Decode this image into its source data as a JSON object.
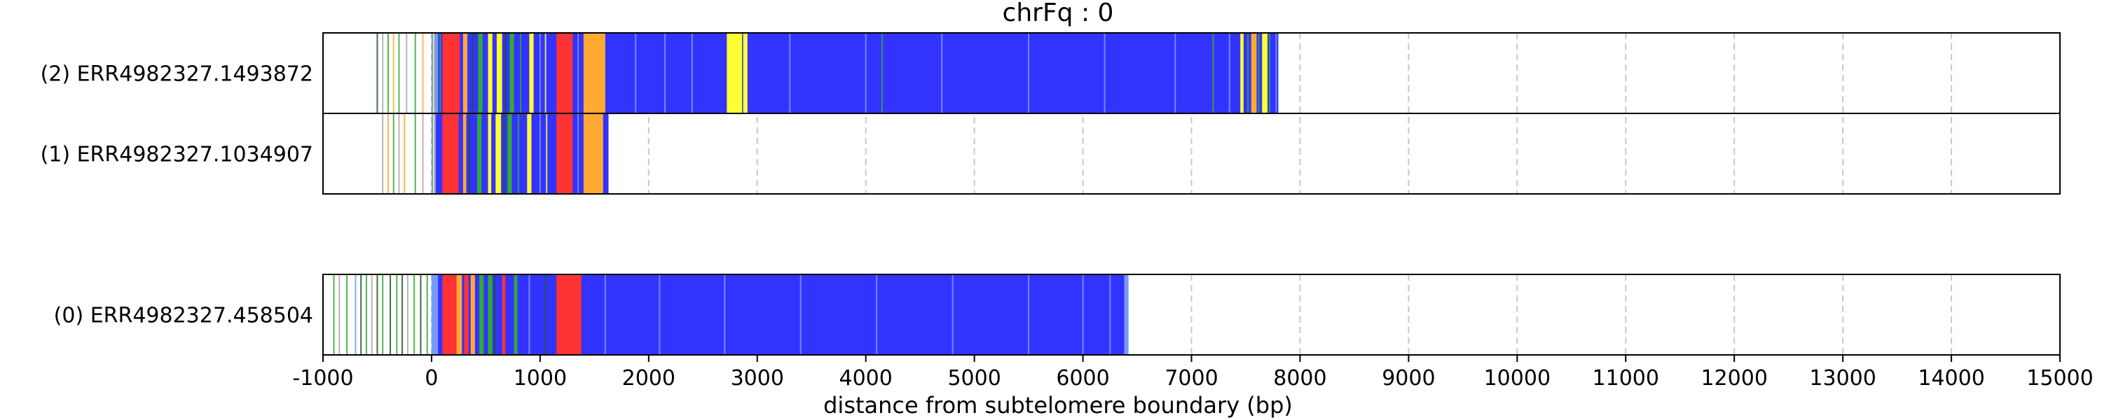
{
  "chart_data": {
    "type": "track",
    "title": "chrFq : 0",
    "xlabel": "distance from subtelomere boundary (bp)",
    "xlim": [
      -1000,
      15000
    ],
    "xticks": [
      -1000,
      0,
      1000,
      2000,
      3000,
      4000,
      5000,
      6000,
      7000,
      8000,
      9000,
      10000,
      11000,
      12000,
      13000,
      14000,
      15000
    ],
    "grid": "vertical-dashed",
    "colors": {
      "blue": "#3333ff",
      "red": "#ff3333",
      "orange": "#ffaa33",
      "yellow": "#ffff33",
      "green": "#33aa33",
      "lightblue": "#7799ff",
      "darkgreen": "#225522",
      "gray": "#aaaaaa"
    },
    "reads": [
      {
        "label": "(2) ERR4982327.1493872",
        "group": 0,
        "end": 7800,
        "segments": [
          {
            "start": 0,
            "end": 7800,
            "color": "blue"
          },
          {
            "start": 0,
            "end": 60,
            "color": "lightblue"
          },
          {
            "start": 100,
            "end": 260,
            "color": "red"
          },
          {
            "start": 290,
            "end": 330,
            "color": "orange"
          },
          {
            "start": 430,
            "end": 470,
            "color": "green"
          },
          {
            "start": 520,
            "end": 560,
            "color": "yellow"
          },
          {
            "start": 600,
            "end": 650,
            "color": "yellow"
          },
          {
            "start": 720,
            "end": 760,
            "color": "green"
          },
          {
            "start": 900,
            "end": 940,
            "color": "yellow"
          },
          {
            "start": 1150,
            "end": 1300,
            "color": "red"
          },
          {
            "start": 1400,
            "end": 1600,
            "color": "orange"
          },
          {
            "start": 2720,
            "end": 2860,
            "color": "yellow"
          },
          {
            "start": 2870,
            "end": 2910,
            "color": "yellow"
          },
          {
            "start": 7450,
            "end": 7480,
            "color": "yellow"
          },
          {
            "start": 7550,
            "end": 7600,
            "color": "orange"
          },
          {
            "start": 7650,
            "end": 7700,
            "color": "yellow"
          }
        ],
        "ticks": [
          {
            "x": -500,
            "color": "darkgreen"
          },
          {
            "x": -450,
            "color": "gray"
          },
          {
            "x": -400,
            "color": "green"
          },
          {
            "x": -350,
            "color": "orange"
          },
          {
            "x": -300,
            "color": "green"
          },
          {
            "x": -230,
            "color": "gray"
          },
          {
            "x": -150,
            "color": "green"
          },
          {
            "x": -80,
            "color": "orange"
          },
          {
            "x": 20,
            "color": "yellow"
          },
          {
            "x": 80,
            "color": "green"
          },
          {
            "x": 380,
            "color": "darkgreen"
          },
          {
            "x": 680,
            "color": "darkgreen"
          },
          {
            "x": 820,
            "color": "green"
          },
          {
            "x": 1000,
            "color": "lightblue"
          },
          {
            "x": 1050,
            "color": "yellow"
          },
          {
            "x": 1350,
            "color": "lightblue"
          },
          {
            "x": 1880,
            "color": "lightblue"
          },
          {
            "x": 2150,
            "color": "lightblue"
          },
          {
            "x": 2400,
            "color": "lightblue"
          },
          {
            "x": 3300,
            "color": "lightblue"
          },
          {
            "x": 4000,
            "color": "lightblue"
          },
          {
            "x": 4150,
            "color": "green"
          },
          {
            "x": 4700,
            "color": "lightblue"
          },
          {
            "x": 5500,
            "color": "lightblue"
          },
          {
            "x": 6200,
            "color": "lightblue"
          },
          {
            "x": 6850,
            "color": "lightblue"
          },
          {
            "x": 7200,
            "color": "green"
          },
          {
            "x": 7350,
            "color": "lightblue"
          },
          {
            "x": 7520,
            "color": "green"
          },
          {
            "x": 7620,
            "color": "green"
          },
          {
            "x": 7720,
            "color": "green"
          },
          {
            "x": 7780,
            "color": "lightblue"
          }
        ]
      },
      {
        "label": "(1) ERR4982327.1034907",
        "group": 0,
        "end": 1630,
        "segments": [
          {
            "start": 0,
            "end": 1630,
            "color": "blue"
          },
          {
            "start": 0,
            "end": 40,
            "color": "lightblue"
          },
          {
            "start": 100,
            "end": 250,
            "color": "red"
          },
          {
            "start": 290,
            "end": 320,
            "color": "orange"
          },
          {
            "start": 420,
            "end": 460,
            "color": "green"
          },
          {
            "start": 520,
            "end": 550,
            "color": "yellow"
          },
          {
            "start": 590,
            "end": 640,
            "color": "yellow"
          },
          {
            "start": 700,
            "end": 740,
            "color": "green"
          },
          {
            "start": 880,
            "end": 920,
            "color": "yellow"
          },
          {
            "start": 1150,
            "end": 1300,
            "color": "red"
          },
          {
            "start": 1400,
            "end": 1580,
            "color": "orange"
          }
        ],
        "ticks": [
          {
            "x": -450,
            "color": "gray"
          },
          {
            "x": -400,
            "color": "orange"
          },
          {
            "x": -350,
            "color": "green"
          },
          {
            "x": -300,
            "color": "gray"
          },
          {
            "x": -250,
            "color": "orange"
          },
          {
            "x": -150,
            "color": "green"
          },
          {
            "x": -80,
            "color": "gray"
          },
          {
            "x": 20,
            "color": "yellow"
          },
          {
            "x": 350,
            "color": "darkgreen"
          },
          {
            "x": 670,
            "color": "darkgreen"
          },
          {
            "x": 800,
            "color": "green"
          },
          {
            "x": 1000,
            "color": "lightblue"
          },
          {
            "x": 1060,
            "color": "yellow"
          },
          {
            "x": 1350,
            "color": "lightblue"
          }
        ]
      },
      {
        "label": "(0) ERR4982327.458504",
        "group": 1,
        "end": 6400,
        "segments": [
          {
            "start": 0,
            "end": 6400,
            "color": "blue"
          },
          {
            "start": 0,
            "end": 60,
            "color": "lightblue"
          },
          {
            "start": 100,
            "end": 230,
            "color": "red"
          },
          {
            "start": 230,
            "end": 280,
            "color": "orange"
          },
          {
            "start": 300,
            "end": 340,
            "color": "red"
          },
          {
            "start": 360,
            "end": 400,
            "color": "orange"
          },
          {
            "start": 440,
            "end": 480,
            "color": "green"
          },
          {
            "start": 520,
            "end": 560,
            "color": "green"
          },
          {
            "start": 650,
            "end": 680,
            "color": "red"
          },
          {
            "start": 760,
            "end": 790,
            "color": "green"
          },
          {
            "start": 1150,
            "end": 1380,
            "color": "red"
          },
          {
            "start": 6380,
            "end": 6420,
            "color": "lightblue"
          }
        ],
        "ticks": [
          {
            "x": -900,
            "color": "green"
          },
          {
            "x": -850,
            "color": "gray"
          },
          {
            "x": -780,
            "color": "green"
          },
          {
            "x": -700,
            "color": "lightblue"
          },
          {
            "x": -650,
            "color": "darkgreen"
          },
          {
            "x": -600,
            "color": "green"
          },
          {
            "x": -550,
            "color": "gray"
          },
          {
            "x": -500,
            "color": "darkgreen"
          },
          {
            "x": -450,
            "color": "green"
          },
          {
            "x": -380,
            "color": "darkgreen"
          },
          {
            "x": -320,
            "color": "green"
          },
          {
            "x": -270,
            "color": "darkgreen"
          },
          {
            "x": -220,
            "color": "gray"
          },
          {
            "x": -160,
            "color": "green"
          },
          {
            "x": -100,
            "color": "darkgreen"
          },
          {
            "x": -40,
            "color": "green"
          },
          {
            "x": 580,
            "color": "darkgreen"
          },
          {
            "x": 900,
            "color": "lightblue"
          },
          {
            "x": 1050,
            "color": "darkgreen"
          },
          {
            "x": 1600,
            "color": "lightblue"
          },
          {
            "x": 2100,
            "color": "lightblue"
          },
          {
            "x": 2700,
            "color": "lightblue"
          },
          {
            "x": 3400,
            "color": "lightblue"
          },
          {
            "x": 4100,
            "color": "lightblue"
          },
          {
            "x": 4800,
            "color": "lightblue"
          },
          {
            "x": 5500,
            "color": "lightblue"
          },
          {
            "x": 6000,
            "color": "lightblue"
          },
          {
            "x": 6250,
            "color": "lightblue"
          }
        ]
      }
    ]
  }
}
